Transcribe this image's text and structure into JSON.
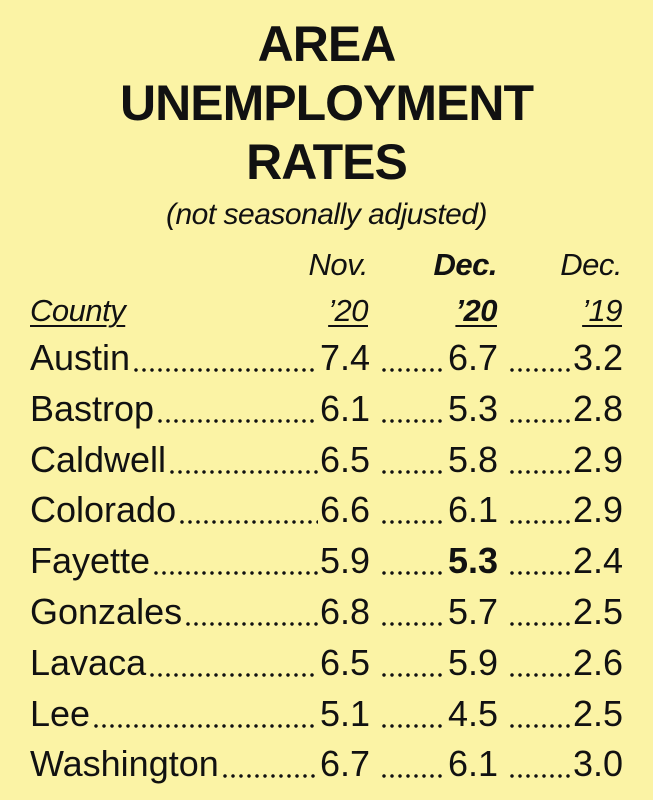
{
  "header": {
    "title_lines": [
      "AREA",
      "UNEMPLOYMENT",
      "RATES"
    ],
    "subtitle": "(not seasonally adjusted)"
  },
  "table": {
    "columns": [
      {
        "lines": [
          "",
          "County"
        ]
      },
      {
        "lines": [
          "Nov.",
          "’20"
        ]
      },
      {
        "lines": [
          "Dec.",
          "’20"
        ]
      },
      {
        "lines": [
          "Dec.",
          "’19"
        ]
      }
    ],
    "rows": [
      [
        "Austin",
        "7.4",
        "6.7",
        "3.2"
      ],
      [
        "Bastrop",
        "6.1",
        "5.3",
        "2.8"
      ],
      [
        "Caldwell",
        "6.5",
        "5.8",
        "2.9"
      ],
      [
        "Colorado",
        "6.6",
        "6.1",
        "2.9"
      ],
      [
        "Fayette",
        "5.9",
        "5.3",
        "2.4"
      ],
      [
        "Gonzales",
        "6.8",
        "5.7",
        "2.5"
      ],
      [
        "Lavaca",
        "6.5",
        "5.9",
        "2.6"
      ],
      [
        "Lee",
        "5.1",
        "4.5",
        "2.5"
      ],
      [
        "Washington",
        "6.7",
        "6.1",
        "3.0"
      ]
    ]
  }
}
